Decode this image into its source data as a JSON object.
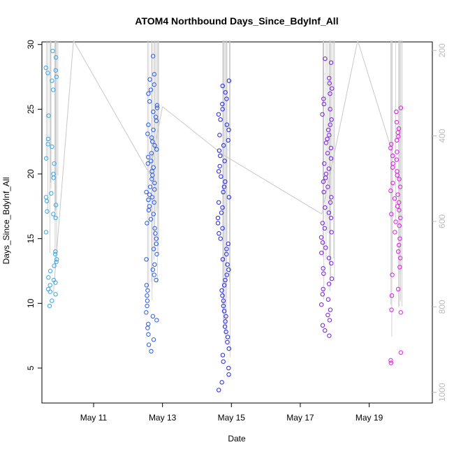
{
  "chart_data": {
    "type": "scatter",
    "title": "ATOM4 Northbound Days_Since_BdyInf_All",
    "xlabel": "Date",
    "ylabel": "Days_Since_BdyInf_All",
    "x_tick_labels": [
      "May 11",
      "May 13",
      "May 15",
      "May 17",
      "May 19"
    ],
    "y_ticks": [
      5,
      10,
      15,
      20,
      25,
      30
    ],
    "ylim": [
      2.3,
      30.2
    ],
    "xlim": [
      "2020-05-09 12:00",
      "2020-05-20 20:00"
    ],
    "secondary_y": {
      "ticks": [
        200,
        400,
        600,
        800,
        1000
      ],
      "lim": [
        180,
        1025
      ],
      "reversed": true,
      "color": "#bbbbbb"
    },
    "overlay_line": {
      "color": "#c8c8c8",
      "x": [
        "2020-05-09 20:00",
        "2020-05-10 10:00",
        "2020-05-12 15:00",
        "2020-05-13 00:00",
        "2020-05-14 18:00",
        "2020-05-17 15:00",
        "2020-05-18 16:00",
        "2020-05-19 18:00"
      ],
      "y": [
        10.8,
        30.6,
        20.0,
        25.2,
        21.5,
        16.9,
        30.5,
        21.0
      ]
    },
    "grid": false,
    "legend": "none",
    "series": [
      {
        "color": "#3aa7e6",
        "x": "2020-05-09 18:00",
        "y": [
          29.5,
          29.0,
          28.2,
          28.0,
          27.8,
          27.5,
          27.2,
          26.5,
          24.5,
          22.7,
          22.3,
          22.1,
          21.2,
          20.8,
          20.0,
          19.7,
          18.5,
          18.2,
          17.9,
          17.6,
          17.1,
          16.9,
          16.6,
          15.5,
          14.0,
          13.8,
          13.4,
          13.2,
          12.9,
          12.5,
          12.0,
          11.8,
          11.6,
          11.4,
          11.1,
          10.9,
          10.7,
          10.2,
          9.8
        ]
      },
      {
        "color": "#2a5ae8",
        "x": "2020-05-12 16:00",
        "y": [
          29.1,
          27.7,
          27.3,
          26.9,
          26.5,
          26.2,
          25.6,
          25.3,
          25.1,
          24.8,
          24.4,
          24.1,
          23.8,
          23.4,
          23.1,
          22.8,
          22.5,
          22.2,
          21.9,
          21.6,
          21.3,
          21.0,
          20.8,
          20.5,
          20.2,
          19.9,
          19.6,
          19.3,
          19.0,
          18.8,
          18.6,
          18.4,
          18.2,
          18.0,
          17.8,
          17.5,
          17.2,
          16.9,
          16.5,
          16.2,
          15.8,
          15.4,
          15.0,
          14.6,
          14.2,
          13.8,
          13.4,
          13.0,
          12.6,
          12.2,
          11.8,
          11.4,
          11.0,
          10.6,
          10.2,
          9.8,
          9.3,
          9.0,
          8.7,
          8.4,
          8.1,
          7.6,
          7.2,
          6.8,
          6.3
        ]
      },
      {
        "color": "#2424e6",
        "x": "2020-05-14 18:00",
        "y": [
          27.2,
          26.8,
          26.3,
          25.8,
          25.4,
          25.0,
          24.6,
          24.2,
          23.8,
          23.4,
          23.0,
          22.6,
          22.2,
          21.8,
          21.4,
          21.0,
          20.6,
          20.2,
          19.8,
          19.4,
          19.0,
          18.6,
          18.2,
          17.8,
          17.4,
          17.0,
          16.6,
          16.2,
          15.8,
          15.4,
          15.0,
          14.6,
          14.2,
          13.8,
          13.4,
          13.0,
          12.6,
          12.2,
          11.8,
          11.4,
          11.0,
          10.6,
          10.2,
          9.8,
          9.4,
          9.0,
          8.6,
          8.2,
          7.8,
          7.4,
          7.0,
          6.5,
          6.0,
          5.5,
          5.0,
          4.5,
          3.9,
          3.3
        ]
      },
      {
        "color": "#7a1fe0",
        "x": "2020-05-17 18:00",
        "y": [
          28.9,
          28.6,
          27.4,
          27.0,
          26.6,
          26.2,
          25.8,
          25.4,
          25.0,
          24.6,
          24.2,
          23.8,
          23.4,
          23.0,
          22.7,
          22.4,
          22.0,
          21.6,
          21.2,
          20.8,
          20.4,
          20.0,
          19.7,
          19.4,
          19.0,
          18.6,
          18.2,
          17.8,
          17.4,
          17.0,
          16.6,
          16.2,
          15.8,
          15.5,
          15.1,
          14.7,
          14.3,
          13.9,
          13.5,
          13.1,
          12.7,
          12.3,
          11.9,
          11.5,
          11.1,
          10.7,
          10.3,
          9.9,
          9.5,
          9.1,
          8.7,
          8.3,
          7.9,
          7.5
        ]
      },
      {
        "color": "#e01ee6",
        "x": "2020-05-19 18:00",
        "y": [
          25.1,
          24.8,
          24.0,
          23.5,
          23.2,
          22.9,
          22.6,
          22.3,
          22.0,
          21.7,
          21.4,
          21.1,
          20.8,
          20.5,
          20.2,
          19.9,
          19.6,
          19.3,
          19.0,
          18.7,
          18.4,
          18.1,
          17.8,
          17.5,
          17.2,
          16.9,
          16.6,
          16.3,
          16.0,
          15.5,
          15.0,
          14.5,
          14.0,
          13.5,
          12.8,
          12.2,
          11.1,
          10.6,
          9.5,
          9.3,
          6.2,
          5.6,
          5.4
        ]
      }
    ]
  }
}
